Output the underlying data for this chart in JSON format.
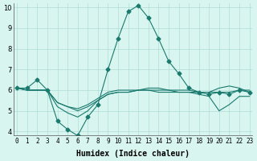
{
  "xlabel": "Humidex (Indice chaleur)",
  "ylabel": "",
  "background_color": "#d8f5f0",
  "line_color": "#1a7a6e",
  "grid_color": "#b0ddd8",
  "xlim": [
    0,
    23
  ],
  "ylim": [
    4,
    10
  ],
  "yticks": [
    4,
    5,
    6,
    7,
    8,
    9,
    10
  ],
  "xticks": [
    0,
    1,
    2,
    3,
    4,
    5,
    6,
    7,
    8,
    9,
    10,
    11,
    12,
    13,
    14,
    15,
    16,
    17,
    18,
    19,
    20,
    21,
    22,
    23
  ],
  "series": [
    [
      6.1,
      6.1,
      6.5,
      6.0,
      4.5,
      4.1,
      3.8,
      4.7,
      5.3,
      7.0,
      8.5,
      9.8,
      10.1,
      9.5,
      8.5,
      7.4,
      6.8,
      6.1,
      5.9,
      5.8,
      5.9,
      5.8,
      6.0,
      5.9
    ],
    [
      6.1,
      6.0,
      6.0,
      6.0,
      5.4,
      5.2,
      5.0,
      5.2,
      5.5,
      5.8,
      5.9,
      5.9,
      6.0,
      6.0,
      6.0,
      6.0,
      6.0,
      6.0,
      5.9,
      5.9,
      5.9,
      5.9,
      6.0,
      6.0
    ],
    [
      6.1,
      6.0,
      6.0,
      6.0,
      5.2,
      4.9,
      4.7,
      5.0,
      5.5,
      5.8,
      5.9,
      5.9,
      6.0,
      6.0,
      5.9,
      5.9,
      5.9,
      5.9,
      5.8,
      5.7,
      5.0,
      5.3,
      5.7,
      5.7
    ],
    [
      6.1,
      6.0,
      6.0,
      6.0,
      5.4,
      5.2,
      5.1,
      5.3,
      5.6,
      5.9,
      6.0,
      6.0,
      6.0,
      6.1,
      6.1,
      6.0,
      5.9,
      5.9,
      5.9,
      5.9,
      6.1,
      6.2,
      6.1,
      5.9
    ]
  ],
  "marker_style": "D",
  "marker_size": 2.5
}
